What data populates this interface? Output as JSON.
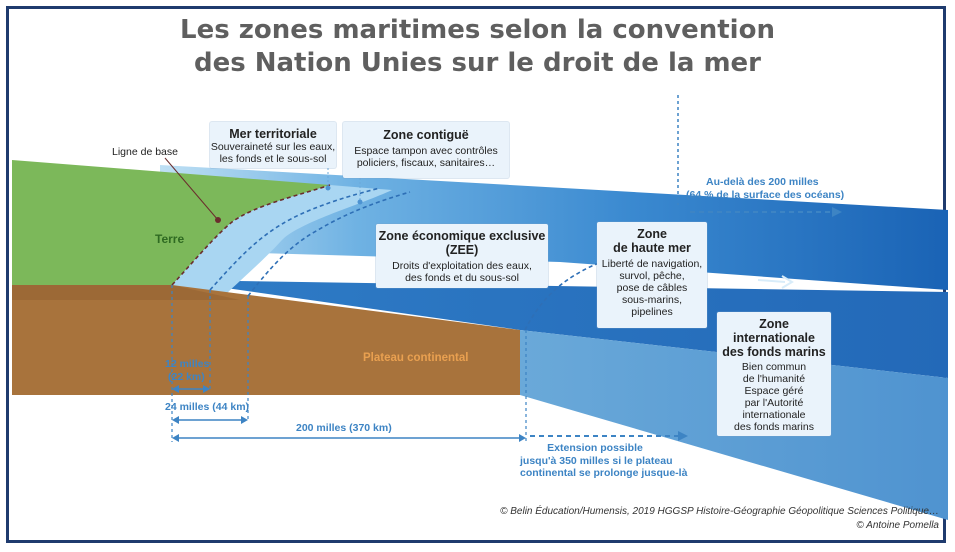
{
  "title": {
    "line1": "Les zones maritimes selon la convention",
    "line2": "des Nation Unies sur le droit de la mer"
  },
  "labels": {
    "ligne_de_base": "Ligne de base",
    "terre": "Terre",
    "plateau": "Plateau continental",
    "au_dela_1": "Au-delà des 200 milles",
    "au_dela_2": "(64 % de la surface des océans)",
    "m12": "12 milles",
    "km22": "(22 km)",
    "m24": "24 milles (44 km)",
    "m200": "200 milles (370 km)",
    "ext1": "Extension possible",
    "ext2": "jusqu'à 350 milles si le plateau",
    "ext3": "continental se prolonge jusque-là"
  },
  "boxes": {
    "mer": {
      "title": "Mer territoriale",
      "l1": "Souveraineté sur les eaux,",
      "l2": "les fonds et le sous-sol"
    },
    "contigue": {
      "title": "Zone contiguë",
      "l1": "Espace tampon  avec contrôles",
      "l2": "policiers, fiscaux, sanitaires…"
    },
    "zee": {
      "title1": "Zone économique  exclusive",
      "title2": "(ZEE)",
      "l1": "Droits d'exploitation  des eaux,",
      "l2": "des fonds et du sous-sol"
    },
    "haute": {
      "title1": "Zone",
      "title2": "de haute mer",
      "l1": "Liberté de navigation,",
      "l2": "survol, pêche,",
      "l3": "pose de câbles",
      "l4": "sous-marins,",
      "l5": "pipelines"
    },
    "fonds": {
      "title1": "Zone",
      "title2": "internationale",
      "title3": "des fonds marins",
      "l1": "Bien commun",
      "l2": "de l'humanité",
      "l3": "Espace géré",
      "l4": "par l'Autorité",
      "l5": "internationale",
      "l6": "des fonds marins"
    }
  },
  "credits": {
    "line1": "© Belin Éducation/Humensis, 2019 HGGSP Histoire-Géographie Géopolitique Sciences Politique…",
    "line2": "© Antoine Pomella"
  },
  "colors": {
    "frame": "#1f3b6e",
    "land": "#7cb85a",
    "soil": "#a8733c",
    "sea_light": "#b9dcf2",
    "sea_dark": "#1f6fbd",
    "accent_blue": "#3d84c4"
  }
}
